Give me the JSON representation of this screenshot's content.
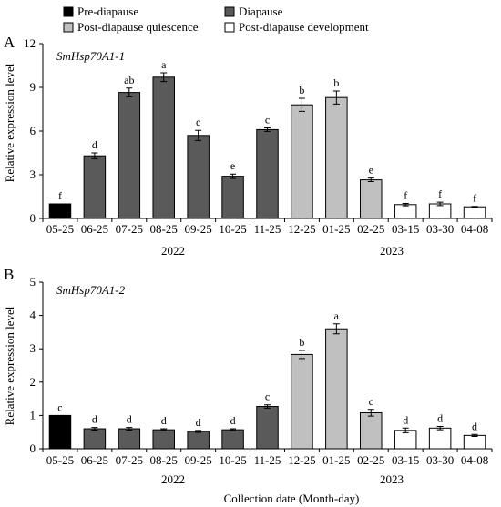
{
  "legend": {
    "items": [
      {
        "label": "Pre-diapause",
        "color": "#000000"
      },
      {
        "label": "Diapause",
        "color": "#5a5a5a"
      },
      {
        "label": "Post-diapause quiescence",
        "color": "#c0c0c0"
      },
      {
        "label": "Post-diapause development",
        "color": "#ffffff"
      }
    ]
  },
  "xlabel": "Collection date (Month-day)",
  "chart_data": [
    {
      "type": "bar",
      "panel_letter": "A",
      "title": "SmHsp70A1-1",
      "ylabel": "Relative expression level",
      "ylim": [
        0,
        12
      ],
      "yticks": [
        0,
        3,
        6,
        9,
        12
      ],
      "categories": [
        "05-25",
        "06-25",
        "07-25",
        "08-25",
        "09-25",
        "10-25",
        "11-25",
        "12-25",
        "01-25",
        "02-25",
        "03-15",
        "03-30",
        "04-08"
      ],
      "values": [
        1.0,
        4.3,
        8.65,
        9.7,
        5.7,
        2.9,
        6.1,
        7.8,
        8.3,
        2.65,
        0.95,
        1.0,
        0.8
      ],
      "errors": [
        0.0,
        0.2,
        0.3,
        0.3,
        0.35,
        0.15,
        0.12,
        0.45,
        0.45,
        0.12,
        0.08,
        0.12,
        0.03
      ],
      "stages": [
        0,
        1,
        1,
        1,
        1,
        1,
        1,
        2,
        2,
        2,
        3,
        3,
        3
      ],
      "letters": [
        "f",
        "d",
        "ab",
        "a",
        "c",
        "e",
        "c",
        "b",
        "b",
        "e",
        "f",
        "f",
        "f"
      ],
      "year_labels": [
        "2022",
        "2023"
      ]
    },
    {
      "type": "bar",
      "panel_letter": "B",
      "title": "SmHsp70A1-2",
      "ylabel": "Relative expression level",
      "ylim": [
        0,
        5
      ],
      "yticks": [
        0,
        1,
        2,
        3,
        4,
        5
      ],
      "categories": [
        "05-25",
        "06-25",
        "07-25",
        "08-25",
        "09-25",
        "10-25",
        "11-25",
        "12-25",
        "01-25",
        "02-25",
        "03-15",
        "03-30",
        "04-08"
      ],
      "values": [
        1.0,
        0.6,
        0.6,
        0.57,
        0.52,
        0.57,
        1.27,
        2.83,
        3.6,
        1.08,
        0.55,
        0.62,
        0.4
      ],
      "errors": [
        0.0,
        0.04,
        0.04,
        0.03,
        0.03,
        0.03,
        0.05,
        0.12,
        0.15,
        0.1,
        0.07,
        0.05,
        0.03
      ],
      "stages": [
        0,
        1,
        1,
        1,
        1,
        1,
        1,
        2,
        2,
        2,
        3,
        3,
        3
      ],
      "letters": [
        "c",
        "d",
        "d",
        "d",
        "d",
        "d",
        "c",
        "b",
        "a",
        "c",
        "d",
        "d",
        "d"
      ],
      "year_labels": [
        "2022",
        "2023"
      ]
    }
  ]
}
